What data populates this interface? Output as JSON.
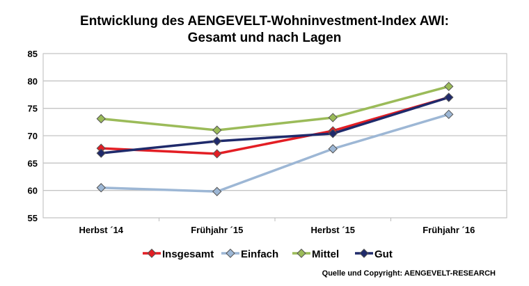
{
  "chart_data": {
    "type": "line",
    "title": "Entwicklung des AENGEVELT-Wohninvestment-Index AWI:",
    "subtitle": "Gesamt und nach Lagen",
    "categories": [
      "Herbst ´14",
      "Frühjahr ´15",
      "Herbst ´15",
      "Frühjahr ´16"
    ],
    "ylim": [
      55,
      85
    ],
    "yticks": [
      55,
      60,
      65,
      70,
      75,
      80,
      85
    ],
    "grid": true,
    "legend_position": "bottom",
    "series": [
      {
        "name": "Insgesamt",
        "color": "#e31e24",
        "values": [
          67.7,
          66.7,
          70.9,
          77.0
        ]
      },
      {
        "name": "Einfach",
        "color": "#9db7d5",
        "values": [
          60.5,
          59.8,
          67.6,
          73.9
        ]
      },
      {
        "name": "Mittel",
        "color": "#9bbb59",
        "values": [
          73.1,
          71.0,
          73.3,
          79.0
        ]
      },
      {
        "name": "Gut",
        "color": "#1f2a6b",
        "values": [
          66.8,
          69.0,
          70.4,
          77.0
        ]
      }
    ],
    "source": "Quelle und Copyright: AENGEVELT-RESEARCH"
  }
}
